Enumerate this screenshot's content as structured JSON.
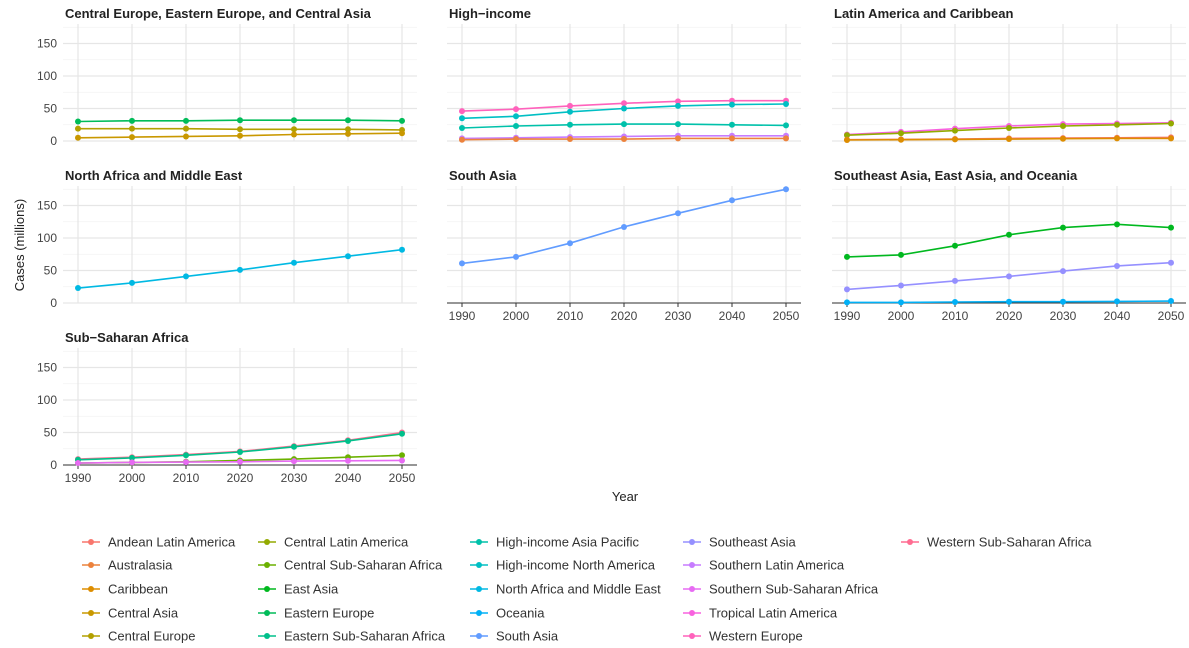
{
  "chart_data": {
    "type": "line",
    "ylabel": "Cases (millions)",
    "xlabel": "Year",
    "x": [
      1990,
      2000,
      2010,
      2020,
      2030,
      2040,
      2050
    ],
    "xticks": [
      "1990",
      "2000",
      "2010",
      "2020",
      "2030",
      "2040",
      "2050"
    ],
    "yticks": [
      "0",
      "50",
      "100",
      "150"
    ],
    "ylim": [
      0,
      180
    ],
    "grid": true,
    "legend_position": "bottom",
    "legend": [
      {
        "name": "Andean Latin America",
        "color": "#F8766D"
      },
      {
        "name": "Australasia",
        "color": "#EC823C"
      },
      {
        "name": "Caribbean",
        "color": "#DD8D00"
      },
      {
        "name": "Central Asia",
        "color": "#C99800"
      },
      {
        "name": "Central Europe",
        "color": "#B3A000"
      },
      {
        "name": "Central Latin America",
        "color": "#93AA00"
      },
      {
        "name": "Central Sub-Saharan Africa",
        "color": "#6BB100"
      },
      {
        "name": "East Asia",
        "color": "#00B81F"
      },
      {
        "name": "Eastern Europe",
        "color": "#00BC59"
      },
      {
        "name": "Eastern Sub-Saharan Africa",
        "color": "#00C08B"
      },
      {
        "name": "High-income Asia Pacific",
        "color": "#00C1AA"
      },
      {
        "name": "High-income North America",
        "color": "#00BFC4"
      },
      {
        "name": "North Africa and Middle East",
        "color": "#00B9E3"
      },
      {
        "name": "Oceania",
        "color": "#00B0F6"
      },
      {
        "name": "South Asia",
        "color": "#619CFF"
      },
      {
        "name": "Southeast Asia",
        "color": "#9590FF"
      },
      {
        "name": "Southern Latin America",
        "color": "#C77CFF"
      },
      {
        "name": "Southern Sub-Saharan Africa",
        "color": "#E76BF3"
      },
      {
        "name": "Tropical Latin America",
        "color": "#F862DF"
      },
      {
        "name": "Western Europe",
        "color": "#FF62BC"
      },
      {
        "name": "Western Sub-Saharan Africa",
        "color": "#FF6C91"
      }
    ],
    "panels": [
      {
        "title": "Central Europe, Eastern Europe, and Central Asia",
        "series": [
          {
            "name": "Eastern Europe",
            "color": "#00BC59",
            "values": [
              30,
              31,
              31,
              32,
              32,
              32,
              31
            ]
          },
          {
            "name": "Central Europe",
            "color": "#B3A000",
            "values": [
              19,
              19,
              19,
              18,
              18,
              18,
              17
            ]
          },
          {
            "name": "Central Asia",
            "color": "#C99800",
            "values": [
              5,
              6,
              7,
              8,
              10,
              11,
              12
            ]
          }
        ]
      },
      {
        "title": "High−income",
        "series": [
          {
            "name": "Western Europe",
            "color": "#FF62BC",
            "values": [
              46,
              49,
              54,
              58,
              61,
              62,
              62
            ]
          },
          {
            "name": "High-income North America",
            "color": "#00BFC4",
            "values": [
              35,
              38,
              45,
              50,
              54,
              56,
              57
            ]
          },
          {
            "name": "High-income Asia Pacific",
            "color": "#00C1AA",
            "values": [
              20,
              23,
              25,
              26,
              26,
              25,
              24
            ]
          },
          {
            "name": "Southern Latin America",
            "color": "#C77CFF",
            "values": [
              4,
              5,
              6,
              7,
              8,
              8,
              8
            ]
          },
          {
            "name": "Australasia",
            "color": "#EC823C",
            "values": [
              2,
              3,
              3,
              3,
              4,
              4,
              4
            ]
          }
        ]
      },
      {
        "title": "Latin America and Caribbean",
        "series": [
          {
            "name": "Tropical Latin America",
            "color": "#F862DF",
            "values": [
              10,
              14,
              19,
              23,
              26,
              27,
              28
            ]
          },
          {
            "name": "Central Latin America",
            "color": "#93AA00",
            "values": [
              9,
              12,
              16,
              20,
              23,
              25,
              27
            ]
          },
          {
            "name": "Andean Latin America",
            "color": "#F8766D",
            "values": [
              2,
              2.5,
              3,
              4,
              4.5,
              5,
              5.5
            ]
          },
          {
            "name": "Caribbean",
            "color": "#DD8D00",
            "values": [
              1.5,
              2,
              2.5,
              3,
              3.5,
              4,
              4
            ]
          }
        ]
      },
      {
        "title": "North Africa and Middle East",
        "series": [
          {
            "name": "North Africa and Middle East",
            "color": "#00B9E3",
            "values": [
              23,
              31,
              41,
              51,
              62,
              72,
              82
            ]
          }
        ]
      },
      {
        "title": "South Asia",
        "series": [
          {
            "name": "South Asia",
            "color": "#619CFF",
            "values": [
              61,
              71,
              92,
              117,
              138,
              158,
              175
            ]
          }
        ]
      },
      {
        "title": "Southeast Asia, East Asia, and Oceania",
        "series": [
          {
            "name": "East Asia",
            "color": "#00B81F",
            "values": [
              71,
              74,
              88,
              105,
              116,
              121,
              116
            ]
          },
          {
            "name": "Southeast Asia",
            "color": "#9590FF",
            "values": [
              21,
              27,
              34,
              41,
              49,
              57,
              62
            ]
          },
          {
            "name": "Oceania",
            "color": "#00B0F6",
            "values": [
              1,
              1,
              1.5,
              2,
              2,
              2.5,
              3
            ]
          }
        ]
      },
      {
        "title": "Sub−Saharan Africa",
        "series": [
          {
            "name": "Western Sub-Saharan Africa",
            "color": "#FF6C91",
            "values": [
              9,
              12,
              16,
              21,
              29,
              38,
              50
            ]
          },
          {
            "name": "Eastern Sub-Saharan Africa",
            "color": "#00C08B",
            "values": [
              8,
              11,
              15,
              20,
              28,
              37,
              48
            ]
          },
          {
            "name": "Central Sub-Saharan Africa",
            "color": "#6BB100",
            "values": [
              3,
              4,
              5,
              7,
              9,
              12,
              15
            ]
          },
          {
            "name": "Southern Sub-Saharan Africa",
            "color": "#E76BF3",
            "values": [
              3,
              4,
              4.5,
              5,
              6,
              6.5,
              7
            ]
          }
        ]
      }
    ]
  }
}
